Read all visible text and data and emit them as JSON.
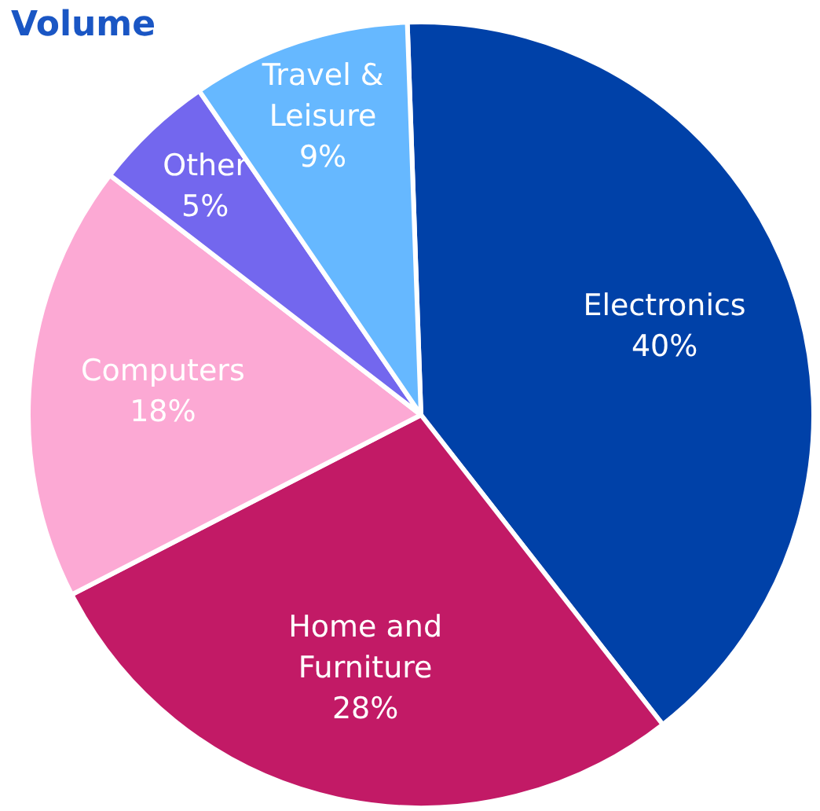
{
  "chart_data": {
    "type": "pie",
    "title": "Volume",
    "categories": [
      "Electronics",
      "Home and Furniture",
      "Computers",
      "Other",
      "Travel & Leisure"
    ],
    "values": [
      40,
      28,
      18,
      5,
      9
    ],
    "colors": [
      "#0041a8",
      "#c21a66",
      "#fca9d4",
      "#7367ee",
      "#66b8ff"
    ],
    "value_labels": [
      "40%",
      "28%",
      "18%",
      "5%",
      "9%"
    ]
  }
}
